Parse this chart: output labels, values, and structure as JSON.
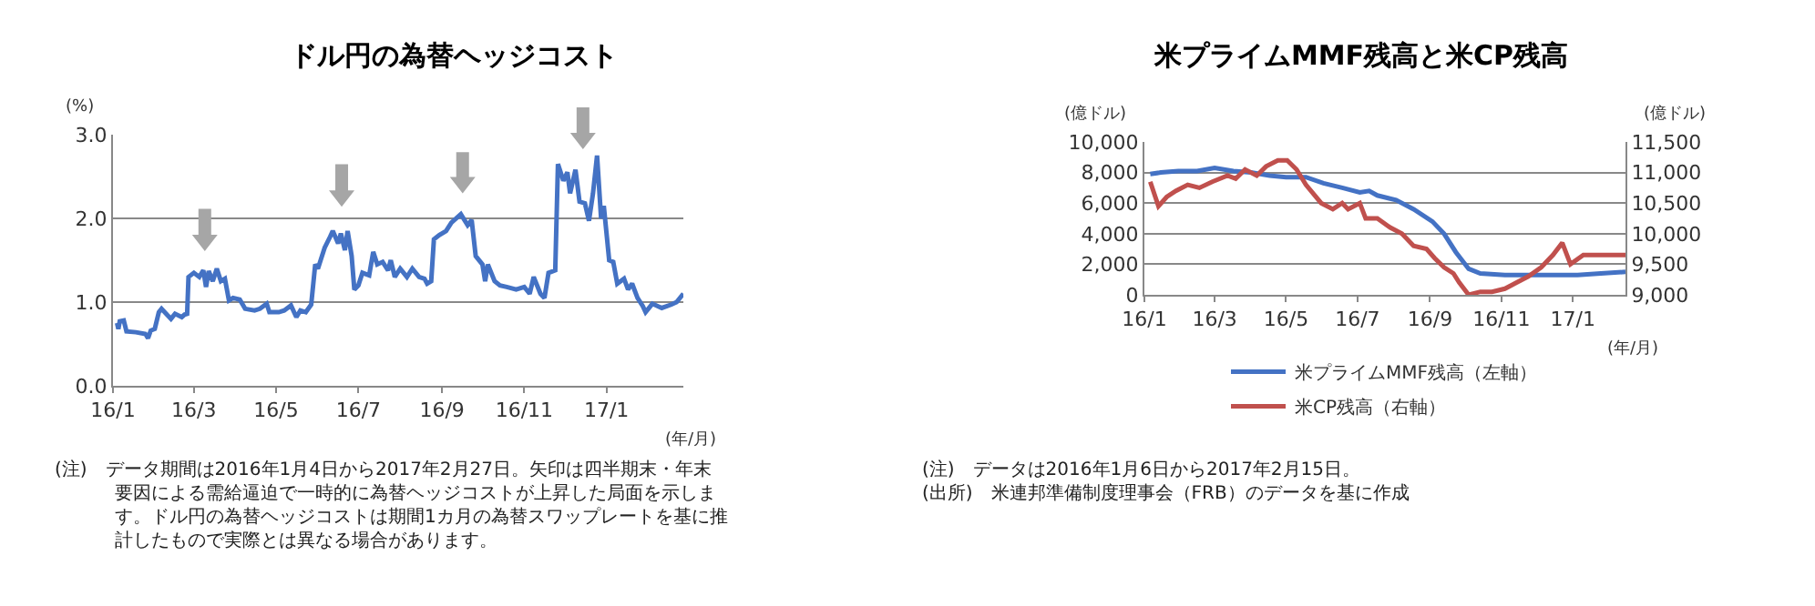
{
  "chart_data": [
    {
      "type": "line",
      "title": "ドル円の為替ヘッジコスト",
      "ylabel": "(%)",
      "xlabel": "(年/月)",
      "xlim": [
        "2016-01-01",
        "2017-02-27"
      ],
      "xticks": [
        {
          "value": "2016-01-01",
          "label": "16/1"
        },
        {
          "value": "2016-03-01",
          "label": "16/3"
        },
        {
          "value": "2016-05-01",
          "label": "16/5"
        },
        {
          "value": "2016-07-01",
          "label": "16/7"
        },
        {
          "value": "2016-09-01",
          "label": "16/9"
        },
        {
          "value": "2016-11-01",
          "label": "16/11"
        },
        {
          "value": "2017-01-01",
          "label": "17/1"
        }
      ],
      "ylim": [
        0,
        3
      ],
      "yticks": [
        {
          "value": 0,
          "label": "0.0"
        },
        {
          "value": 1,
          "label": "1.0"
        },
        {
          "value": 2,
          "label": "2.0"
        },
        {
          "value": 3,
          "label": "3.0"
        }
      ],
      "grid": "y",
      "legend": false,
      "line_style": "solid",
      "marker": "none",
      "series": [
        {
          "color": "#4472c4",
          "x": [
            "2016-01-04",
            "2016-01-05",
            "2016-01-06",
            "2016-01-09",
            "2016-01-11",
            "2016-01-18",
            "2016-01-25",
            "2016-01-27",
            "2016-01-29",
            "2016-02-01",
            "2016-02-04",
            "2016-02-06",
            "2016-02-10",
            "2016-02-13",
            "2016-02-16",
            "2016-02-21",
            "2016-02-23",
            "2016-02-25",
            "2016-02-26",
            "2016-03-01",
            "2016-03-05",
            "2016-03-08",
            "2016-03-10",
            "2016-03-12",
            "2016-03-15",
            "2016-03-18",
            "2016-03-21",
            "2016-03-24",
            "2016-03-27",
            "2016-03-30",
            "2016-04-04",
            "2016-04-08",
            "2016-04-15",
            "2016-04-19",
            "2016-04-24",
            "2016-04-26",
            "2016-05-03",
            "2016-05-07",
            "2016-05-12",
            "2016-05-16",
            "2016-05-19",
            "2016-05-23",
            "2016-05-27",
            "2016-05-30",
            "2016-06-01",
            "2016-06-03",
            "2016-06-06",
            "2016-06-10",
            "2016-06-12",
            "2016-06-16",
            "2016-06-18",
            "2016-06-21",
            "2016-06-23",
            "2016-06-26",
            "2016-06-28",
            "2016-07-01",
            "2016-07-04",
            "2016-07-09",
            "2016-07-12",
            "2016-07-15",
            "2016-07-19",
            "2016-07-23",
            "2016-07-25",
            "2016-07-28",
            "2016-08-01",
            "2016-08-06",
            "2016-08-10",
            "2016-08-15",
            "2016-08-19",
            "2016-08-21",
            "2016-08-24",
            "2016-08-26",
            "2016-08-30",
            "2016-09-04",
            "2016-09-08",
            "2016-09-15",
            "2016-09-20",
            "2016-09-23",
            "2016-09-26",
            "2016-10-01",
            "2016-10-03",
            "2016-10-05",
            "2016-10-10",
            "2016-10-14",
            "2016-10-19",
            "2016-10-26",
            "2016-11-01",
            "2016-11-05",
            "2016-11-08",
            "2016-11-13",
            "2016-11-16",
            "2016-11-19",
            "2016-11-24",
            "2016-11-26",
            "2016-11-30",
            "2016-12-03",
            "2016-12-05",
            "2016-12-09",
            "2016-12-12",
            "2016-12-16",
            "2016-12-19",
            "2016-12-22",
            "2016-12-25",
            "2016-12-28",
            "2016-12-30",
            "2017-01-03",
            "2017-01-06",
            "2017-01-09",
            "2017-01-14",
            "2017-01-17",
            "2017-01-20",
            "2017-01-24",
            "2017-01-28",
            "2017-01-30",
            "2017-02-04",
            "2017-02-11",
            "2017-02-18",
            "2017-02-22",
            "2017-02-27"
          ],
          "values": [
            0.75,
            0.68,
            0.77,
            0.78,
            0.65,
            0.64,
            0.62,
            0.57,
            0.66,
            0.68,
            0.88,
            0.92,
            0.85,
            0.8,
            0.86,
            0.82,
            0.85,
            0.86,
            1.3,
            1.35,
            1.3,
            1.38,
            1.18,
            1.37,
            1.25,
            1.4,
            1.25,
            1.28,
            1.02,
            1.05,
            1.03,
            0.92,
            0.9,
            0.92,
            0.98,
            0.88,
            0.88,
            0.9,
            0.96,
            0.82,
            0.9,
            0.88,
            0.97,
            1.45,
            1.4,
            1.5,
            1.65,
            1.78,
            1.85,
            1.7,
            1.82,
            1.62,
            1.85,
            1.55,
            1.15,
            1.2,
            1.35,
            1.32,
            1.6,
            1.45,
            1.48,
            1.38,
            1.5,
            1.3,
            1.4,
            1.3,
            1.4,
            1.3,
            1.28,
            1.22,
            1.25,
            1.75,
            1.8,
            1.85,
            1.95,
            2.05,
            1.92,
            1.98,
            1.55,
            1.45,
            1.25,
            1.45,
            1.25,
            1.2,
            1.18,
            1.15,
            1.18,
            1.1,
            1.3,
            1.1,
            1.05,
            1.35,
            1.38,
            2.65,
            2.45,
            2.55,
            2.3,
            2.58,
            2.2,
            2.18,
            1.97,
            2.3,
            2.75,
            2.0,
            2.15,
            1.5,
            1.48,
            1.22,
            1.28,
            1.15,
            1.22,
            1.05,
            0.95,
            0.88,
            0.98,
            0.93,
            0.97,
            1.0,
            1.1
          ]
        }
      ],
      "annotations": [
        "(注)　データ期間は2016年1月4日から2017年2月27日。矢印は四半期末・年末要因による需給逼迫で一時的に為替ヘッジコストが上昇した局面を示します。ドル円の為替ヘッジコストは期間1カ月の為替スワップレートを基に推計したもので実際とは異なる場合があります。"
      ]
    },
    {
      "type": "line",
      "title": "米プライムMMF残高と米CP残高",
      "ylabel": "(億ドル)",
      "y2label": "(億ドル)",
      "xlabel": "(年/月)",
      "xlim": [
        "2016-01-01",
        "2017-02-15"
      ],
      "xticks": [
        {
          "value": "2016-01-01",
          "label": "16/1"
        },
        {
          "value": "2016-03-01",
          "label": "16/3"
        },
        {
          "value": "2016-05-01",
          "label": "16/5"
        },
        {
          "value": "2016-07-01",
          "label": "16/7"
        },
        {
          "value": "2016-09-01",
          "label": "16/9"
        },
        {
          "value": "2016-11-01",
          "label": "16/11"
        },
        {
          "value": "2017-01-01",
          "label": "17/1"
        }
      ],
      "ylim": [
        0,
        10000
      ],
      "yticks": [
        0,
        {
          "value": 2000,
          "label": "2,000"
        },
        {
          "value": 4000,
          "label": "4,000"
        },
        {
          "value": 6000,
          "label": "6,000"
        },
        {
          "value": 8000,
          "label": "8,000"
        },
        {
          "value": 10000,
          "label": "10,000"
        }
      ],
      "y2lim": [
        9000,
        11500
      ],
      "y2ticks": [
        {
          "value": 9000,
          "label": "9,000"
        },
        {
          "value": 9500,
          "label": "9,500"
        },
        {
          "value": 10000,
          "label": "10,000"
        },
        {
          "value": 10500,
          "label": "10,500"
        },
        {
          "value": 11000,
          "label": "11,000"
        },
        {
          "value": 11500,
          "label": "11,500"
        }
      ],
      "grid": "y",
      "legend": "bottom",
      "line_style": "solid",
      "marker": "none",
      "series": [
        {
          "name": "米プライムMMF残高（左軸）",
          "color": "#4472c4",
          "x": [
            "2016-01-06",
            "2016-01-15",
            "2016-01-30",
            "2016-02-15",
            "2016-03-01",
            "2016-03-17",
            "2016-04-01",
            "2016-04-17",
            "2016-05-01",
            "2016-05-18",
            "2016-06-02",
            "2016-06-18",
            "2016-07-03",
            "2016-07-11",
            "2016-07-18",
            "2016-08-03",
            "2016-08-18",
            "2016-09-03",
            "2016-09-13",
            "2016-09-23",
            "2016-10-04",
            "2016-10-14",
            "2016-11-04",
            "2016-12-05",
            "2017-01-05",
            "2017-01-25",
            "2017-02-15"
          ],
          "values": [
            7900,
            8000,
            8100,
            8100,
            8300,
            8100,
            8000,
            7800,
            7700,
            7700,
            7300,
            7000,
            6700,
            6800,
            6500,
            6200,
            5600,
            4800,
            4000,
            2800,
            1700,
            1400,
            1300,
            1300,
            1300,
            1400,
            1500
          ]
        },
        {
          "name": "米CP残高（右軸）",
          "color": "#c0504d",
          "axis": "y2",
          "x": [
            "2016-01-06",
            "2016-01-13",
            "2016-01-20",
            "2016-01-28",
            "2016-02-07",
            "2016-02-17",
            "2016-02-28",
            "2016-03-12",
            "2016-03-19",
            "2016-03-27",
            "2016-04-06",
            "2016-04-14",
            "2016-04-24",
            "2016-05-02",
            "2016-05-10",
            "2016-05-18",
            "2016-05-31",
            "2016-06-10",
            "2016-06-18",
            "2016-06-23",
            "2016-07-03",
            "2016-07-08",
            "2016-07-18",
            "2016-07-29",
            "2016-08-08",
            "2016-08-18",
            "2016-08-29",
            "2016-09-05",
            "2016-09-13",
            "2016-09-21",
            "2016-09-26",
            "2016-10-04",
            "2016-10-14",
            "2016-10-24",
            "2016-11-04",
            "2016-11-14",
            "2016-11-24",
            "2016-12-05",
            "2016-12-15",
            "2016-12-23",
            "2016-12-30",
            "2017-01-10",
            "2017-01-17",
            "2017-01-25",
            "2017-02-15"
          ],
          "values": [
            10850,
            10450,
            10600,
            10700,
            10800,
            10750,
            10850,
            10950,
            10900,
            11050,
            10950,
            11100,
            11200,
            11200,
            11050,
            10800,
            10500,
            10400,
            10500,
            10400,
            10500,
            10250,
            10250,
            10100,
            10000,
            9800,
            9750,
            9600,
            9450,
            9350,
            9200,
            9000,
            9050,
            9050,
            9100,
            9200,
            9300,
            9450,
            9650,
            9850,
            9500,
            9650,
            9650,
            9650,
            9650
          ]
        }
      ],
      "annotations": [
        "(注)　データは2016年1月6日から2017年2月15日。",
        "(出所)　米連邦準備制度理事会（FRB）のデータを基に作成"
      ]
    }
  ]
}
